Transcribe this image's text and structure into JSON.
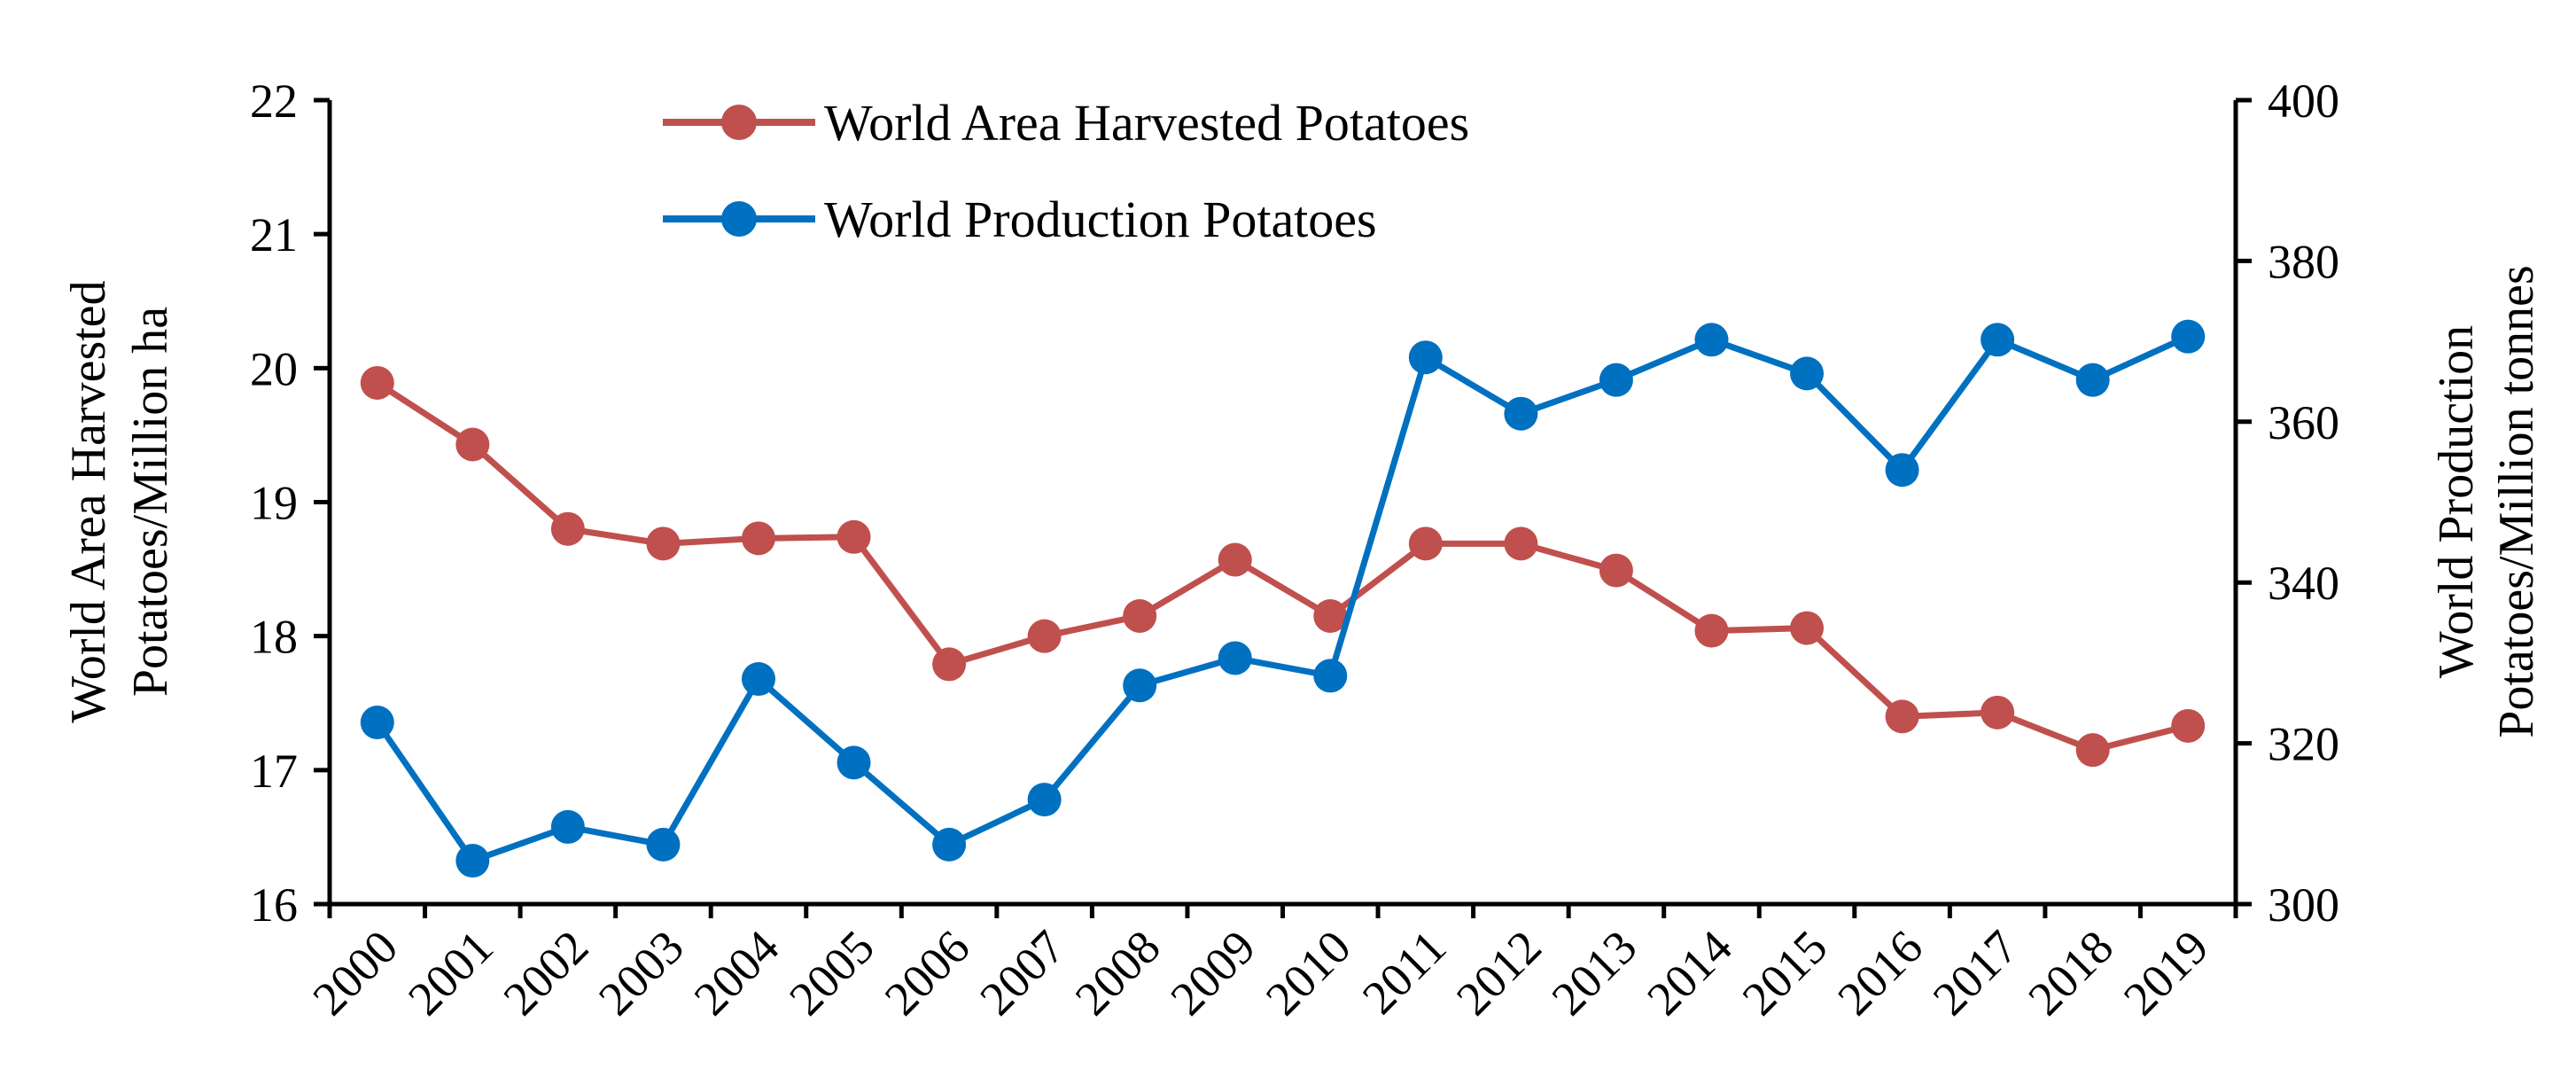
{
  "chart_data": {
    "type": "line",
    "title": "",
    "categories": [
      "2000",
      "2001",
      "2002",
      "2003",
      "2004",
      "2005",
      "2006",
      "2007",
      "2008",
      "2009",
      "2010",
      "2011",
      "2012",
      "2013",
      "2014",
      "2015",
      "2016",
      "2017",
      "2018",
      "2019"
    ],
    "y_left": {
      "label_line1": "World Area Harvested",
      "label_line2": "Potatoes/Million ha",
      "ylim": [
        16,
        22
      ],
      "ticks": [
        "16",
        "17",
        "18",
        "19",
        "20",
        "21",
        "22"
      ]
    },
    "y_right": {
      "label_line1": "World Production",
      "label_line2": "Potatoes/Million tonnes",
      "ylim": [
        300,
        400
      ],
      "ticks": [
        "300",
        "320",
        "340",
        "360",
        "380",
        "400"
      ]
    },
    "series": [
      {
        "name": "World Area Harvested Potatoes",
        "axis": "left",
        "color": "#c0504d",
        "values": [
          19.89,
          19.43,
          18.8,
          18.69,
          18.73,
          18.74,
          17.79,
          18.0,
          18.15,
          18.57,
          18.15,
          18.69,
          18.69,
          18.49,
          18.04,
          18.06,
          17.4,
          17.43,
          17.15,
          17.33
        ]
      },
      {
        "name": "World Production Potatoes",
        "axis": "right",
        "color": "#0070c0",
        "values": [
          322.6,
          305.4,
          309.6,
          307.4,
          328.0,
          317.6,
          307.4,
          313.0,
          327.2,
          330.6,
          328.4,
          368.0,
          361.0,
          365.2,
          370.2,
          366.0,
          354.0,
          370.2,
          365.2,
          370.6
        ]
      }
    ],
    "grid": false,
    "legend_position": "top-center"
  }
}
